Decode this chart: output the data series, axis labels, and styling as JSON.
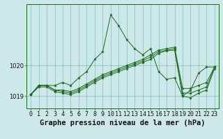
{
  "title": "Graphe pression niveau de la mer (hPa)",
  "bg_color": "#cce8e8",
  "grid_color": "#88bbbb",
  "line_color": "#1a6b1a",
  "marker_color": "#1a6b1a",
  "xlim": [
    -0.5,
    23.5
  ],
  "ylim": [
    1018.6,
    1022.0
  ],
  "yticks": [
    1019,
    1020
  ],
  "xticks": [
    0,
    1,
    2,
    3,
    4,
    5,
    6,
    7,
    8,
    9,
    10,
    11,
    12,
    13,
    14,
    15,
    16,
    17,
    18,
    19,
    20,
    21,
    22,
    23
  ],
  "series": [
    {
      "x": [
        0,
        1,
        2,
        3,
        4,
        5,
        6,
        7,
        8,
        9,
        10,
        11,
        12,
        13,
        14,
        15,
        16,
        17,
        18,
        19,
        20,
        21,
        22,
        23
      ],
      "y": [
        1019.05,
        1019.35,
        1019.35,
        1019.35,
        1019.45,
        1019.35,
        1019.6,
        1019.8,
        1020.2,
        1020.45,
        1021.65,
        1021.3,
        1020.85,
        1020.55,
        1020.35,
        1020.55,
        1019.8,
        1019.55,
        1019.6,
        1019.0,
        1019.2,
        1019.75,
        1019.95,
        1019.95
      ]
    },
    {
      "x": [
        0,
        1,
        2,
        3,
        4,
        5,
        6,
        7,
        8,
        9,
        10,
        11,
        12,
        13,
        14,
        15,
        16,
        17,
        18,
        19,
        20,
        21,
        22,
        23
      ],
      "y": [
        1019.05,
        1019.35,
        1019.35,
        1019.2,
        1019.2,
        1019.15,
        1019.25,
        1019.4,
        1019.55,
        1019.7,
        1019.8,
        1019.9,
        1020.0,
        1020.1,
        1020.2,
        1020.35,
        1020.5,
        1020.55,
        1020.6,
        1019.25,
        1019.25,
        1019.35,
        1019.45,
        1019.95
      ]
    },
    {
      "x": [
        0,
        1,
        2,
        3,
        4,
        5,
        6,
        7,
        8,
        9,
        10,
        11,
        12,
        13,
        14,
        15,
        16,
        17,
        18,
        19,
        20,
        21,
        22,
        23
      ],
      "y": [
        1019.05,
        1019.35,
        1019.35,
        1019.2,
        1019.15,
        1019.1,
        1019.2,
        1019.35,
        1019.5,
        1019.65,
        1019.75,
        1019.85,
        1019.95,
        1020.05,
        1020.15,
        1020.28,
        1020.45,
        1020.5,
        1020.55,
        1019.1,
        1019.1,
        1019.2,
        1019.3,
        1019.95
      ]
    },
    {
      "x": [
        0,
        1,
        2,
        3,
        4,
        5,
        6,
        7,
        8,
        9,
        10,
        11,
        12,
        13,
        14,
        15,
        16,
        17,
        18,
        19,
        20,
        21,
        22,
        23
      ],
      "y": [
        1019.05,
        1019.3,
        1019.3,
        1019.15,
        1019.1,
        1019.05,
        1019.15,
        1019.3,
        1019.45,
        1019.6,
        1019.7,
        1019.8,
        1019.9,
        1020.0,
        1020.1,
        1020.2,
        1020.4,
        1020.48,
        1020.5,
        1019.0,
        1018.95,
        1019.1,
        1019.2,
        1019.9
      ]
    }
  ],
  "title_fontsize": 7.5,
  "tick_fontsize": 6
}
